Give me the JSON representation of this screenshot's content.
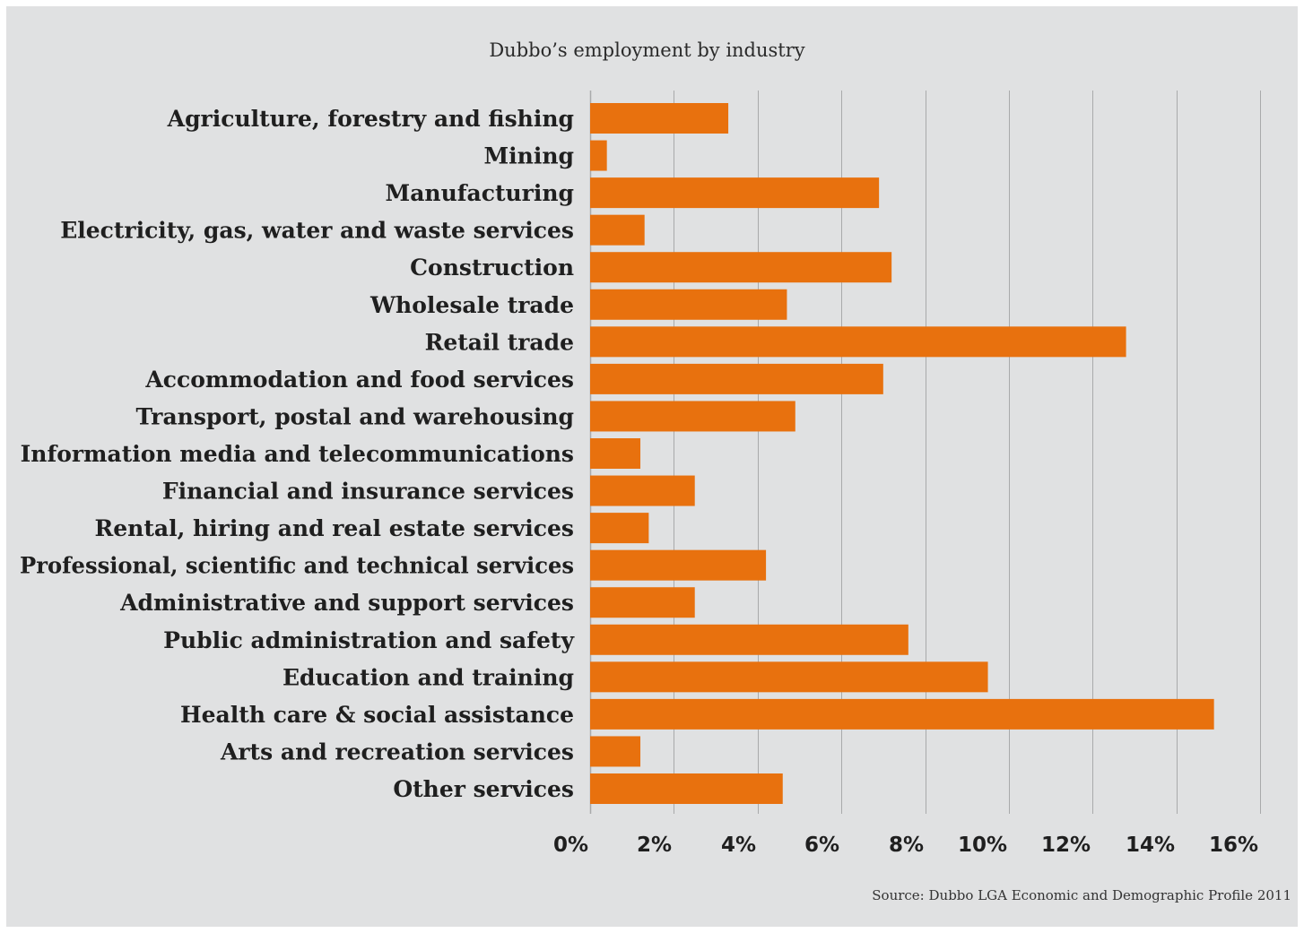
{
  "chart_data": {
    "type": "bar",
    "orientation": "horizontal",
    "title": "Dubbo’s employment by industry",
    "categories": [
      "Agriculture, forestry and fishing",
      "Mining",
      "Manufacturing",
      "Electricity, gas, water and waste services",
      "Construction",
      "Wholesale trade",
      "Retail trade",
      "Accommodation and food services",
      "Transport, postal and warehousing",
      "Information media and telecommunications",
      "Financial and insurance services",
      "Rental, hiring and real estate services",
      "Professional, scientific and technical services",
      "Administrative and support services",
      "Public administration and safety",
      "Education and training",
      "Health care & social assistance",
      "Arts and recreation services",
      "Other services"
    ],
    "values": [
      3.3,
      0.4,
      6.9,
      1.3,
      7.2,
      4.7,
      12.8,
      7.0,
      4.9,
      1.2,
      2.5,
      1.4,
      4.2,
      2.5,
      7.6,
      9.5,
      14.9,
      1.2,
      4.6
    ],
    "xlim": [
      0,
      16
    ],
    "xticks": [
      "0%",
      "2%",
      "4%",
      "6%",
      "8%",
      "10%",
      "12%",
      "14%",
      "16%"
    ],
    "xtick_values": [
      0,
      2,
      4,
      6,
      8,
      10,
      12,
      14,
      16
    ],
    "xlabel": "",
    "ylabel": "",
    "grid": true,
    "bar_color": "#e8710e",
    "gridline_color": "#a9aaab",
    "background_color": "#e0e1e2"
  },
  "source": "Source: Dubbo LGA Economic and Demographic Profile 2011"
}
